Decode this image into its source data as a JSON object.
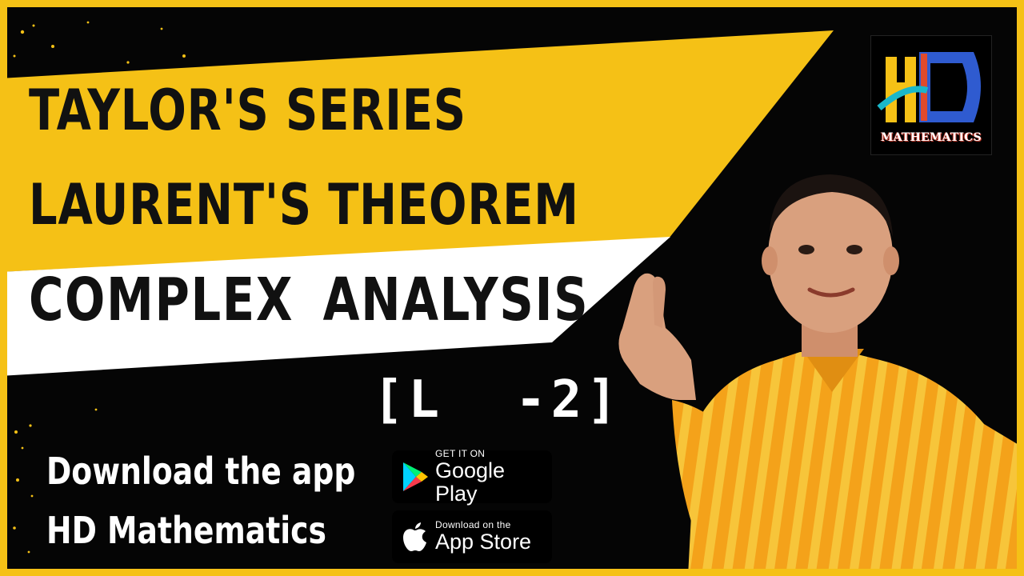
{
  "headline": {
    "line1": "TAYLOR'S SERIES",
    "line2": "LAURENT'S THEOREM",
    "line3": "COMPLEX  ANALYSIS"
  },
  "lecture_label": "[L  -2]",
  "promo": {
    "line1": "Download the app",
    "line2": "HD Mathematics"
  },
  "badges": {
    "google_play": {
      "small": "GET IT ON",
      "big": "Google Play"
    },
    "app_store": {
      "small": "Download on the",
      "big": "App Store"
    }
  },
  "logo": {
    "text": "MATHEMATICS"
  },
  "colors": {
    "frame": "#F5C116",
    "band_yellow": "#F5C116",
    "band_white": "#FFFFFF",
    "background": "#050505",
    "shirt": "#F4A21A"
  },
  "icons": {
    "google_play": "play-triangle-icon",
    "app_store": "apple-icon"
  }
}
